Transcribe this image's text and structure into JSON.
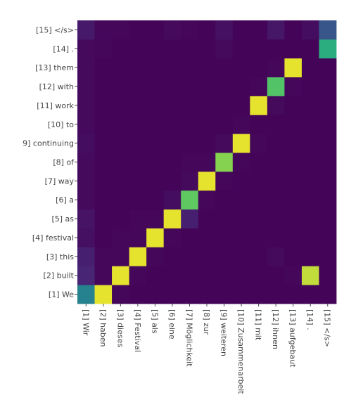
{
  "chart_data": {
    "type": "heatmap",
    "title": "",
    "xlabel": "",
    "ylabel": "",
    "x_labels": [
      "[1] Wir",
      "[2] haben",
      "[3] dieses",
      "[4] Festival",
      "[5] als",
      "[6] eine",
      "[7] Möglichkeit",
      "[8] zur",
      "[9] weiteren",
      "[10] Zusammenarbeit",
      "[11] mit",
      "[12] ihnen",
      "[13] aufgebaut",
      "[14] .",
      "[15] </s>"
    ],
    "y_labels": [
      "[1] We",
      "[2] built",
      "[3] this",
      "[4] festival",
      "[5] as",
      "[6] a",
      "[7] way",
      "[8] of",
      "9] continuing",
      "[10] to",
      "[11] work",
      "[12] with",
      "[13] them",
      "[14] .",
      "[15] </s>"
    ],
    "value_range": [
      0,
      1
    ],
    "colorscale": "viridis",
    "values": [
      [
        0.5,
        0.98,
        0.02,
        0.01,
        0.01,
        0.01,
        0.01,
        0.01,
        0.01,
        0.01,
        0.01,
        0.01,
        0.01,
        0.01,
        0.01
      ],
      [
        0.12,
        0.02,
        0.98,
        0.02,
        0.01,
        0.01,
        0.01,
        0.01,
        0.01,
        0.01,
        0.01,
        0.01,
        0.02,
        0.95,
        0.01
      ],
      [
        0.1,
        0.02,
        0.02,
        0.98,
        0.02,
        0.01,
        0.01,
        0.01,
        0.01,
        0.01,
        0.01,
        0.03,
        0.01,
        0.01,
        0.01
      ],
      [
        0.05,
        0.01,
        0.02,
        0.02,
        0.98,
        0.02,
        0.01,
        0.01,
        0.01,
        0.01,
        0.01,
        0.01,
        0.01,
        0.01,
        0.01
      ],
      [
        0.06,
        0.01,
        0.01,
        0.02,
        0.02,
        0.98,
        0.1,
        0.01,
        0.01,
        0.01,
        0.01,
        0.01,
        0.01,
        0.01,
        0.01
      ],
      [
        0.03,
        0.01,
        0.01,
        0.01,
        0.01,
        0.04,
        0.85,
        0.02,
        0.01,
        0.01,
        0.01,
        0.01,
        0.01,
        0.01,
        0.01
      ],
      [
        0.03,
        0.01,
        0.01,
        0.01,
        0.01,
        0.01,
        0.03,
        0.98,
        0.02,
        0.01,
        0.01,
        0.01,
        0.01,
        0.01,
        0.01
      ],
      [
        0.03,
        0.01,
        0.01,
        0.01,
        0.01,
        0.01,
        0.02,
        0.02,
        0.9,
        0.02,
        0.01,
        0.01,
        0.01,
        0.01,
        0.01
      ],
      [
        0.04,
        0.01,
        0.01,
        0.01,
        0.01,
        0.01,
        0.01,
        0.01,
        0.03,
        0.98,
        0.02,
        0.01,
        0.01,
        0.01,
        0.01
      ],
      [
        0.03,
        0.01,
        0.01,
        0.01,
        0.01,
        0.01,
        0.01,
        0.01,
        0.01,
        0.02,
        0.01,
        0.01,
        0.01,
        0.01,
        0.01
      ],
      [
        0.03,
        0.01,
        0.01,
        0.01,
        0.01,
        0.01,
        0.01,
        0.01,
        0.01,
        0.01,
        0.98,
        0.03,
        0.01,
        0.01,
        0.01
      ],
      [
        0.03,
        0.01,
        0.01,
        0.01,
        0.01,
        0.01,
        0.01,
        0.01,
        0.01,
        0.01,
        0.02,
        0.82,
        0.02,
        0.01,
        0.01
      ],
      [
        0.03,
        0.01,
        0.01,
        0.01,
        0.01,
        0.01,
        0.01,
        0.01,
        0.01,
        0.01,
        0.01,
        0.02,
        0.98,
        0.01,
        0.01
      ],
      [
        0.03,
        0.02,
        0.01,
        0.01,
        0.01,
        0.01,
        0.01,
        0.01,
        0.03,
        0.01,
        0.01,
        0.01,
        0.01,
        0.01,
        0.7
      ],
      [
        0.08,
        0.02,
        0.02,
        0.01,
        0.01,
        0.03,
        0.02,
        0.01,
        0.05,
        0.01,
        0.01,
        0.07,
        0.01,
        0.04,
        0.3
      ]
    ]
  }
}
